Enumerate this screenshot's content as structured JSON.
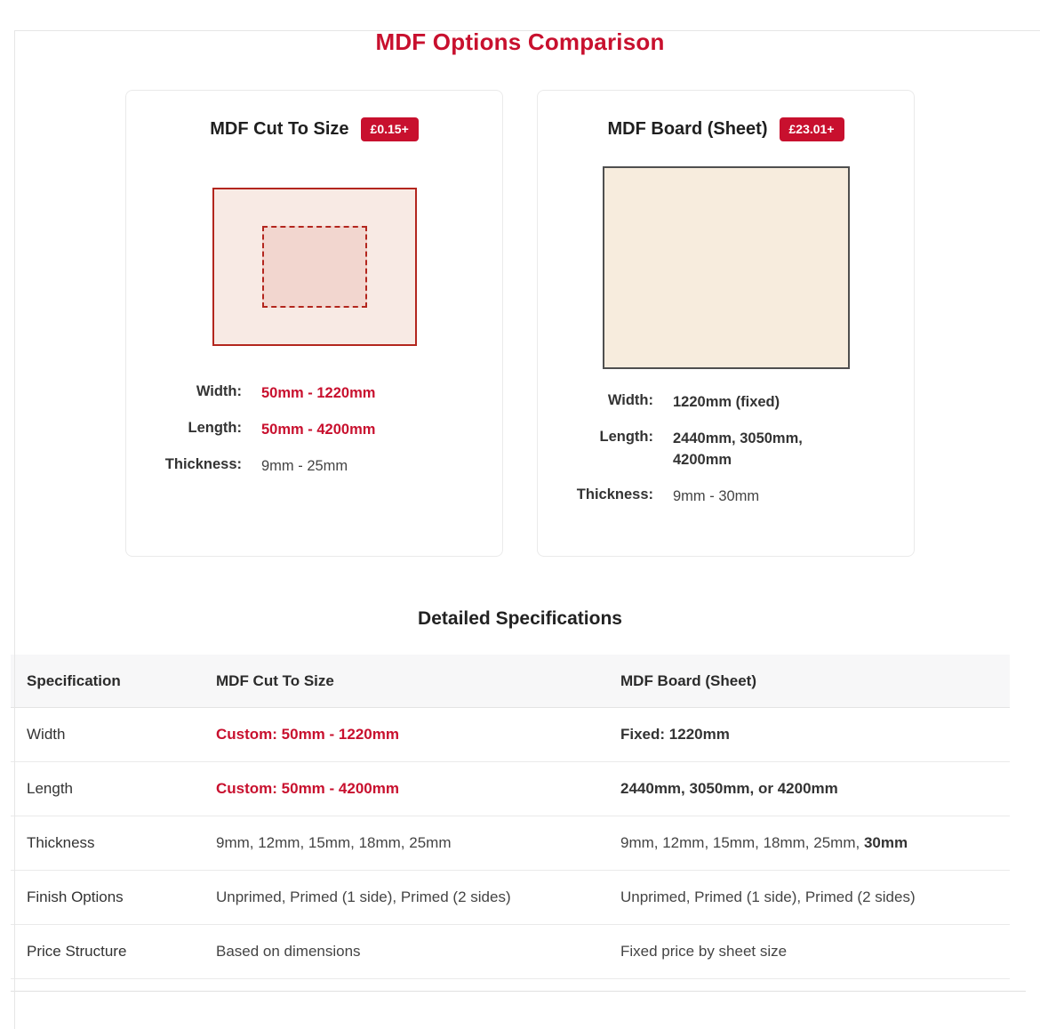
{
  "colors": {
    "accent": "#c8102e",
    "diagram-red": "#b3261e",
    "sheet-pink": "#f8eae4",
    "piece-pink": "#f2d6cf",
    "board-cream": "#f7ecdd"
  },
  "page": {
    "title": "MDF Options Comparison"
  },
  "cards": [
    {
      "title": "MDF Cut To Size",
      "badge": "£0.15+",
      "diagram": "cut-to-size-diagram",
      "specs": [
        {
          "label": "Width:",
          "value": "50mm - 1220mm"
        },
        {
          "label": "Length:",
          "value": "50mm - 4200mm"
        },
        {
          "label": "Thickness:",
          "value": "9mm - 25mm"
        }
      ]
    },
    {
      "title": "MDF Board (Sheet)",
      "badge": "£23.01+",
      "diagram": "board-sheet-diagram",
      "specs": [
        {
          "label": "Width:",
          "value": "1220mm (fixed)"
        },
        {
          "label": "Length:",
          "value": "2440mm, 3050mm, 4200mm"
        },
        {
          "label": "Thickness:",
          "value": "9mm - 30mm"
        }
      ]
    }
  ],
  "details": {
    "heading": "Detailed Specifications",
    "columns": [
      "Specification",
      "MDF Cut To Size",
      "MDF Board (Sheet)"
    ],
    "rows": [
      {
        "spec": "Width",
        "cut": "Custom: 50mm - 1220mm",
        "board": "Fixed: 1220mm"
      },
      {
        "spec": "Length",
        "cut": "Custom: 50mm - 4200mm",
        "board": "2440mm, 3050mm, or 4200mm"
      },
      {
        "spec": "Thickness",
        "cut": "9mm, 12mm, 15mm, 18mm, 25mm",
        "board_prefix": "9mm, 12mm, 15mm, 18mm, 25mm, ",
        "board_bold": "30mm"
      },
      {
        "spec": "Finish Options",
        "cut": "Unprimed, Primed (1 side), Primed (2 sides)",
        "board": "Unprimed, Primed (1 side), Primed (2 sides)"
      },
      {
        "spec": "Price Structure",
        "cut": "Based on dimensions",
        "board": "Fixed price by sheet size"
      }
    ]
  }
}
